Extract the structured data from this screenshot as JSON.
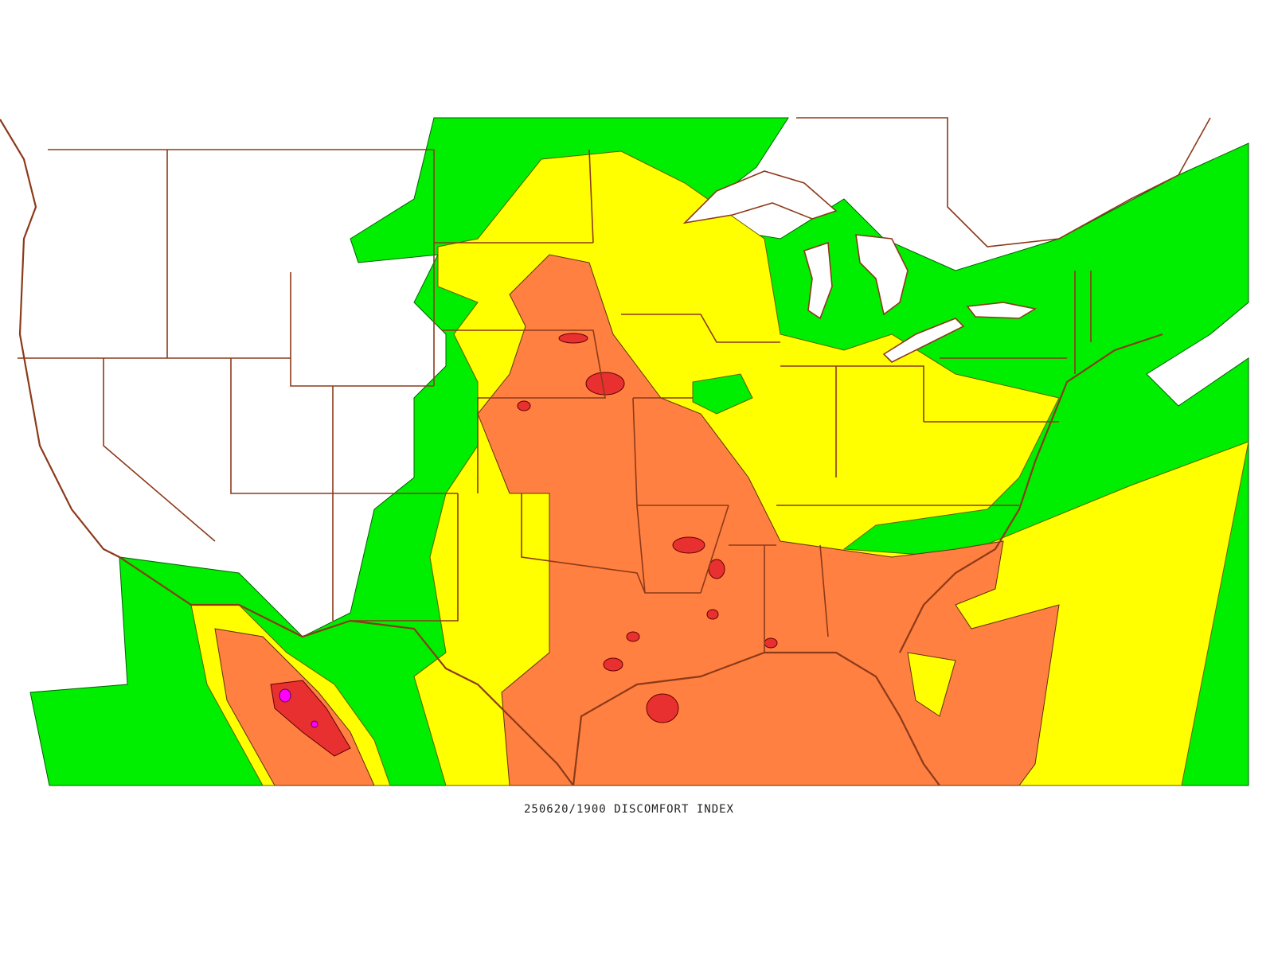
{
  "caption": "250620/1900 DISCOMFORT INDEX"
}
